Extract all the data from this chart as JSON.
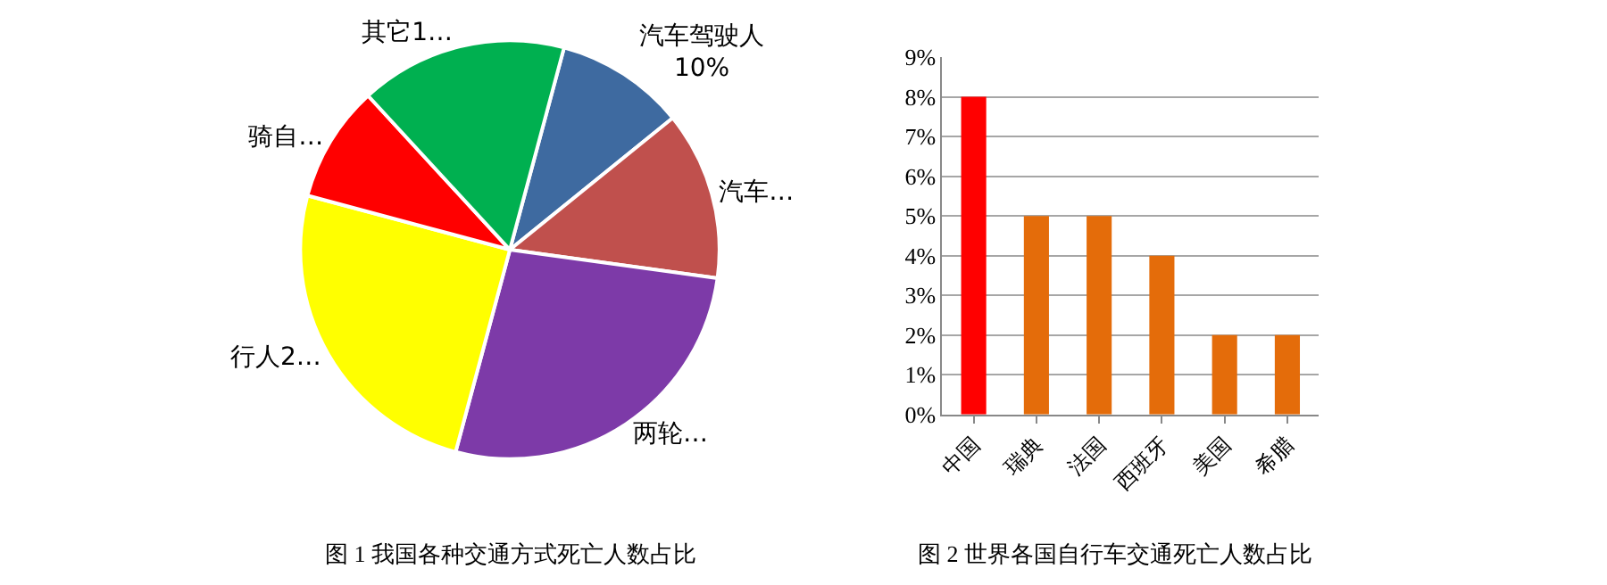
{
  "chart_data": [
    {
      "type": "pie",
      "title": "图 1 我国各种交通方式死亡人数占比",
      "categories": [
        "汽车驾驶人 10%",
        "汽车…",
        "两轮…",
        "行人2…",
        "骑自…",
        "其它1…"
      ],
      "values": [
        10,
        13,
        27,
        25,
        9,
        16
      ],
      "colors": [
        "#3e6aa0",
        "#c0504d",
        "#7d3aa8",
        "#ffff00",
        "#ff0000",
        "#00b050"
      ]
    },
    {
      "type": "bar",
      "title": "图 2 世界各国自行车交通死亡人数占比",
      "categories": [
        "中国",
        "瑞典",
        "法国",
        "西班牙",
        "美国",
        "希腊"
      ],
      "values": [
        8,
        5,
        5,
        4,
        2,
        2
      ],
      "colors": [
        "#ff0000",
        "#e46c0a",
        "#e46c0a",
        "#e46c0a",
        "#e46c0a",
        "#e46c0a"
      ],
      "ylim": [
        0,
        9
      ],
      "yticks": [
        {
          "value": 0,
          "label": "0%"
        },
        {
          "value": 1,
          "label": "1%"
        },
        {
          "value": 2,
          "label": "2%"
        },
        {
          "value": 3,
          "label": "3%"
        },
        {
          "value": 4,
          "label": "4%"
        },
        {
          "value": 5,
          "label": "5%"
        },
        {
          "value": 6,
          "label": "6%"
        },
        {
          "value": 7,
          "label": "7%"
        },
        {
          "value": 8,
          "label": "8%"
        },
        {
          "value": 9,
          "label": "9%"
        }
      ],
      "grid": "y"
    }
  ]
}
